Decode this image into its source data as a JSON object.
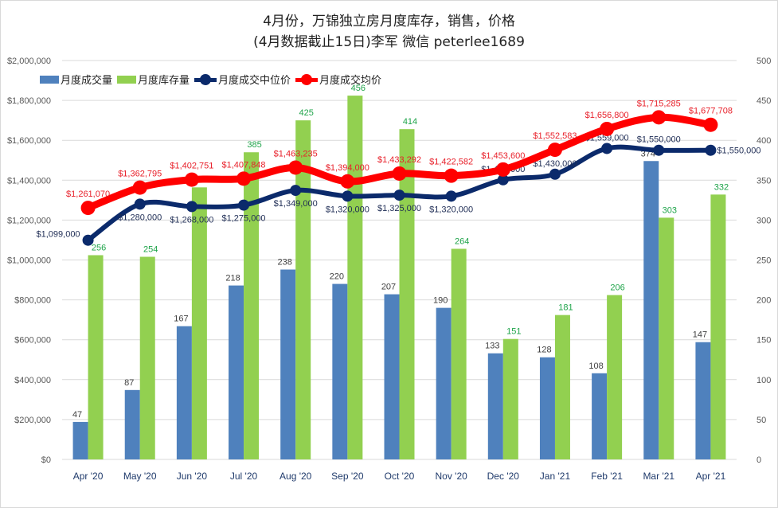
{
  "chart_data": {
    "type": "bar",
    "title": "4月份，万锦独立房月度库存，销售，价格",
    "subtitle": "(4月数据截止15日)李军  微信 peterlee1689",
    "categories": [
      "Apr '20",
      "May '20",
      "Jun '20",
      "Jul '20",
      "Aug '20",
      "Sep '20",
      "Oct '20",
      "Nov '20",
      "Dec '20",
      "Jan '21",
      "Feb '21",
      "Mar '21",
      "Apr '21"
    ],
    "y_left": {
      "min": 0,
      "max": 2000000,
      "step": 200000,
      "ticks": [
        "$0",
        "$200,000",
        "$400,000",
        "$600,000",
        "$800,000",
        "$1,000,000",
        "$1,200,000",
        "$1,400,000",
        "$1,600,000",
        "$1,800,000",
        "$2,000,000"
      ]
    },
    "y_right": {
      "min": 0,
      "max": 500,
      "step": 50,
      "ticks": [
        "0",
        "50",
        "100",
        "150",
        "200",
        "250",
        "300",
        "350",
        "400",
        "450",
        "500"
      ]
    },
    "grid": true,
    "legend_position": "top-left",
    "series": [
      {
        "name": "月度成交量",
        "type": "bar",
        "axis": "right",
        "color": "#4f81bd",
        "label_color": "#404040",
        "values": [
          47,
          87,
          167,
          218,
          238,
          220,
          207,
          190,
          133,
          128,
          108,
          374,
          147
        ]
      },
      {
        "name": "月度库存量",
        "type": "bar",
        "axis": "right",
        "color": "#92d050",
        "label_color": "#1fa44a",
        "values": [
          256,
          254,
          341,
          385,
          425,
          456,
          414,
          264,
          151,
          181,
          206,
          303,
          332
        ]
      },
      {
        "name": "月度成交中位价",
        "type": "line",
        "axis": "left",
        "color": "#0b2a6b",
        "label_color": "#1f2d55",
        "values": [
          1099000,
          1280000,
          1268000,
          1275000,
          1349000,
          1320000,
          1325000,
          1320000,
          1402000,
          1430000,
          1559000,
          1550000,
          1550000
        ],
        "labels": [
          "$1,099,000",
          "$1,280,000",
          "$1,268,000",
          "$1,275,000",
          "$1,349,000",
          "$1,320,000",
          "$1,325,000",
          "$1,320,000",
          "$1,402,000",
          "$1,430,000",
          "$1,559,000",
          "$1,550,000",
          "$1,550,000"
        ]
      },
      {
        "name": "月度成交均价",
        "type": "line",
        "axis": "left",
        "color": "#ff0000",
        "label_color": "#e8202a",
        "values": [
          1261070,
          1362795,
          1402751,
          1407848,
          1463235,
          1394000,
          1433292,
          1422582,
          1453600,
          1552583,
          1656800,
          1715285,
          1677708
        ],
        "labels": [
          "$1,261,070",
          "$1,362,795",
          "$1,402,751",
          "$1,407,848",
          "$1,463,235",
          "$1,394,000",
          "$1,433,292",
          "$1,422,582",
          "$1,453,600",
          "$1,552,583",
          "$1,656,800",
          "$1,715,285",
          "$1,677,708"
        ]
      }
    ]
  }
}
